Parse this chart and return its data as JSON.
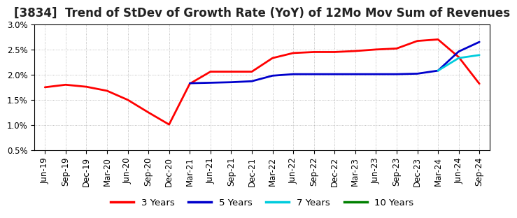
{
  "title": "[3834]  Trend of StDev of Growth Rate (YoY) of 12Mo Mov Sum of Revenues",
  "ylim": [
    0.005,
    0.03
  ],
  "yticks": [
    0.005,
    0.01,
    0.015,
    0.02,
    0.025,
    0.03
  ],
  "ytick_labels": [
    "0.5%",
    "1.0%",
    "1.5%",
    "2.0%",
    "2.5%",
    "3.0%"
  ],
  "x_labels": [
    "Jun-19",
    "Sep-19",
    "Dec-19",
    "Mar-20",
    "Jun-20",
    "Sep-20",
    "Dec-20",
    "Mar-21",
    "Jun-21",
    "Sep-21",
    "Dec-21",
    "Mar-22",
    "Jun-22",
    "Sep-22",
    "Dec-22",
    "Mar-23",
    "Jun-23",
    "Sep-23",
    "Dec-23",
    "Mar-24",
    "Jun-24",
    "Sep-24"
  ],
  "series": {
    "3 Years": {
      "color": "#FF0000",
      "values": [
        0.0175,
        0.018,
        0.0176,
        0.0168,
        0.015,
        0.0125,
        0.0101,
        0.0182,
        0.0206,
        0.0206,
        0.0206,
        0.0233,
        0.0243,
        0.0245,
        0.0245,
        0.0247,
        0.025,
        0.0252,
        0.0267,
        0.027,
        0.0235,
        0.0182
      ]
    },
    "5 Years": {
      "color": "#0000CC",
      "values": [
        null,
        null,
        null,
        null,
        null,
        null,
        null,
        0.0183,
        0.0184,
        0.0185,
        0.0187,
        0.0198,
        0.0201,
        0.0201,
        0.0201,
        0.0201,
        0.0201,
        0.0201,
        0.0202,
        0.0208,
        0.0246,
        0.0265
      ]
    },
    "7 Years": {
      "color": "#00CCDD",
      "values": [
        null,
        null,
        null,
        null,
        null,
        null,
        null,
        null,
        null,
        null,
        null,
        null,
        null,
        null,
        null,
        null,
        null,
        null,
        null,
        0.0208,
        0.0233,
        0.0239
      ]
    },
    "10 Years": {
      "color": "#008000",
      "values": [
        null,
        null,
        null,
        null,
        null,
        null,
        null,
        null,
        null,
        null,
        null,
        null,
        null,
        null,
        null,
        null,
        null,
        null,
        null,
        null,
        null,
        null
      ]
    }
  },
  "legend_order": [
    "3 Years",
    "5 Years",
    "7 Years",
    "10 Years"
  ],
  "background_color": "#ffffff",
  "plot_bg_color": "#ffffff",
  "grid_color": "#aaaaaa",
  "border_color": "#000000",
  "title_fontsize": 12,
  "tick_fontsize": 8.5,
  "legend_fontsize": 9.5,
  "linewidth": 2.0
}
